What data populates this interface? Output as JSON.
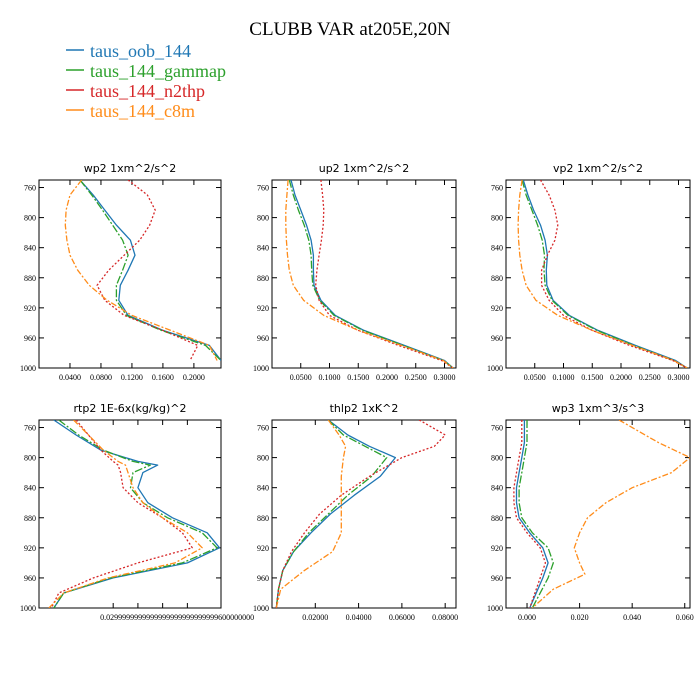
{
  "figure_title": "CLUBB VAR at205E,20N",
  "legend": [
    {
      "label": "taus_oob_144",
      "color": "#1f77b4"
    },
    {
      "label": "taus_144_gammap",
      "color": "#2ca02c"
    },
    {
      "label": "taus_144_n2thp",
      "color": "#d62728"
    },
    {
      "label": "taus_144_c8m",
      "color": "#ff8c1a"
    }
  ],
  "chart_data": [
    {
      "type": "line",
      "title": "wp2   1xm^2/s^2",
      "xlim": [
        0.0,
        0.235
      ],
      "ylim": [
        1000,
        750
      ],
      "xticks": [
        0.04,
        0.08,
        0.12,
        0.16,
        0.2
      ],
      "xtick_labels": [
        "0.0400",
        "0.0800",
        "0.1200",
        "0.1600",
        "0.2000"
      ],
      "yticks": [
        760,
        800,
        840,
        880,
        920,
        960,
        1000
      ],
      "ytick_labels": [
        "760",
        "800",
        "840",
        "880",
        "920",
        "960",
        "1000"
      ],
      "series": [
        {
          "name": "taus_oob_144",
          "x": [
            0.053,
            0.07,
            0.085,
            0.1,
            0.118,
            0.124,
            0.115,
            0.105,
            0.103,
            0.115,
            0.16,
            0.22,
            0.235
          ],
          "y": [
            750,
            770,
            790,
            810,
            830,
            850,
            870,
            890,
            910,
            930,
            950,
            970,
            990
          ]
        },
        {
          "name": "taus_144_gammap",
          "x": [
            0.053,
            0.068,
            0.082,
            0.095,
            0.108,
            0.115,
            0.108,
            0.1,
            0.1,
            0.113,
            0.158,
            0.215,
            0.235
          ],
          "y": [
            750,
            770,
            790,
            810,
            830,
            850,
            870,
            890,
            910,
            930,
            950,
            970,
            990
          ]
        },
        {
          "name": "taus_144_n2thp",
          "x": [
            0.115,
            0.14,
            0.15,
            0.143,
            0.13,
            0.11,
            0.09,
            0.075,
            0.085,
            0.11,
            0.16,
            0.205,
            0.195
          ],
          "y": [
            750,
            770,
            790,
            810,
            830,
            850,
            870,
            890,
            910,
            930,
            950,
            970,
            990
          ]
        },
        {
          "name": "taus_144_c8m",
          "x": [
            0.055,
            0.04,
            0.035,
            0.034,
            0.036,
            0.04,
            0.05,
            0.065,
            0.088,
            0.12,
            0.17,
            0.22,
            0.23
          ],
          "y": [
            750,
            770,
            790,
            810,
            830,
            850,
            870,
            890,
            910,
            930,
            950,
            970,
            990
          ]
        }
      ]
    },
    {
      "type": "line",
      "title": "up2   1xm^2/s^2",
      "xlim": [
        0.0,
        0.32
      ],
      "ylim": [
        1000,
        750
      ],
      "xticks": [
        0.05,
        0.1,
        0.15,
        0.2,
        0.25,
        0.3
      ],
      "xtick_labels": [
        "0.0500",
        "0.1000",
        "0.1500",
        "0.2000",
        "0.2500",
        "0.3000"
      ],
      "yticks": [
        760,
        800,
        840,
        880,
        920,
        960,
        1000
      ],
      "ytick_labels": [
        "760",
        "800",
        "840",
        "880",
        "920",
        "960",
        "1000"
      ],
      "series": [
        {
          "name": "taus_oob_144",
          "x": [
            0.033,
            0.04,
            0.05,
            0.06,
            0.068,
            0.072,
            0.072,
            0.073,
            0.085,
            0.11,
            0.16,
            0.23,
            0.3,
            0.315
          ],
          "y": [
            750,
            770,
            790,
            810,
            830,
            850,
            870,
            890,
            910,
            930,
            950,
            970,
            990,
            1000
          ]
        },
        {
          "name": "taus_144_gammap",
          "x": [
            0.03,
            0.037,
            0.046,
            0.056,
            0.064,
            0.068,
            0.069,
            0.071,
            0.083,
            0.108,
            0.158,
            0.228,
            0.298,
            0.315
          ],
          "y": [
            750,
            770,
            790,
            810,
            830,
            850,
            870,
            890,
            910,
            930,
            950,
            970,
            990,
            1000
          ]
        },
        {
          "name": "taus_144_n2thp",
          "x": [
            0.085,
            0.088,
            0.09,
            0.089,
            0.086,
            0.082,
            0.078,
            0.076,
            0.082,
            0.1,
            0.15,
            0.22,
            0.295,
            0.315
          ],
          "y": [
            750,
            770,
            790,
            810,
            830,
            850,
            870,
            890,
            910,
            930,
            950,
            970,
            990,
            1000
          ]
        },
        {
          "name": "taus_144_c8m",
          "x": [
            0.028,
            0.026,
            0.024,
            0.024,
            0.025,
            0.027,
            0.03,
            0.037,
            0.055,
            0.09,
            0.15,
            0.225,
            0.298,
            0.315
          ],
          "y": [
            750,
            770,
            790,
            810,
            830,
            850,
            870,
            890,
            910,
            930,
            950,
            970,
            990,
            1000
          ]
        }
      ]
    },
    {
      "type": "line",
      "title": "vp2   1xm^2/s^2",
      "xlim": [
        0.0,
        0.32
      ],
      "ylim": [
        1000,
        750
      ],
      "xticks": [
        0.05,
        0.1,
        0.15,
        0.2,
        0.25,
        0.3
      ],
      "xtick_labels": [
        "0.0500",
        "0.1000",
        "0.1500",
        "0.2000",
        "0.2500",
        "0.3000"
      ],
      "yticks": [
        760,
        800,
        840,
        880,
        920,
        960,
        1000
      ],
      "ytick_labels": [
        "760",
        "800",
        "840",
        "880",
        "920",
        "960",
        "1000"
      ],
      "series": [
        {
          "name": "taus_oob_144",
          "x": [
            0.03,
            0.038,
            0.048,
            0.06,
            0.068,
            0.072,
            0.07,
            0.071,
            0.082,
            0.11,
            0.16,
            0.225,
            0.295,
            0.315
          ],
          "y": [
            750,
            770,
            790,
            810,
            830,
            850,
            870,
            890,
            910,
            930,
            950,
            970,
            990,
            1000
          ]
        },
        {
          "name": "taus_144_gammap",
          "x": [
            0.028,
            0.035,
            0.045,
            0.055,
            0.063,
            0.067,
            0.066,
            0.068,
            0.08,
            0.108,
            0.158,
            0.222,
            0.292,
            0.315
          ],
          "y": [
            750,
            770,
            790,
            810,
            830,
            850,
            870,
            890,
            910,
            930,
            950,
            970,
            990,
            1000
          ]
        },
        {
          "name": "taus_144_n2thp",
          "x": [
            0.06,
            0.075,
            0.085,
            0.09,
            0.085,
            0.072,
            0.062,
            0.062,
            0.075,
            0.1,
            0.15,
            0.215,
            0.29,
            0.315
          ],
          "y": [
            750,
            770,
            790,
            810,
            830,
            850,
            870,
            890,
            910,
            930,
            950,
            970,
            990,
            1000
          ]
        },
        {
          "name": "taus_144_c8m",
          "x": [
            0.028,
            0.024,
            0.022,
            0.021,
            0.022,
            0.024,
            0.028,
            0.035,
            0.052,
            0.09,
            0.15,
            0.22,
            0.292,
            0.315
          ],
          "y": [
            750,
            770,
            790,
            810,
            830,
            850,
            870,
            890,
            910,
            930,
            950,
            970,
            990,
            1000
          ]
        }
      ]
    },
    {
      "type": "line",
      "title": "rtp2   1E-6x(kg/kg)^2",
      "xlim": [
        0.0,
        0.0736
      ],
      "ylim": [
        1000,
        750
      ],
      "xticks": [
        0.03,
        0.04,
        0.05,
        0.06
      ],
      "xtick_labels": [
        "0.0299999",
        "0.0399999",
        "0.0499999",
        "0.0600000"
      ],
      "xtick_label_text": "0.0299999999999999999999999999600000000",
      "yticks": [
        760,
        800,
        840,
        880,
        920,
        960,
        1000
      ],
      "ytick_labels": [
        "760",
        "800",
        "840",
        "880",
        "920",
        "960",
        "1000"
      ],
      "series": [
        {
          "name": "taus_oob_144",
          "x": [
            0.006,
            0.015,
            0.025,
            0.04,
            0.048,
            0.042,
            0.04,
            0.044,
            0.054,
            0.068,
            0.073,
            0.06,
            0.03,
            0.01,
            0.006
          ],
          "y": [
            750,
            770,
            790,
            805,
            810,
            820,
            840,
            860,
            880,
            900,
            920,
            940,
            960,
            980,
            1000
          ]
        },
        {
          "name": "taus_144_gammap",
          "x": [
            0.008,
            0.016,
            0.026,
            0.038,
            0.045,
            0.038,
            0.037,
            0.042,
            0.052,
            0.066,
            0.072,
            0.058,
            0.029,
            0.01,
            0.006
          ],
          "y": [
            750,
            770,
            790,
            805,
            810,
            820,
            840,
            860,
            880,
            900,
            920,
            940,
            960,
            980,
            1000
          ]
        },
        {
          "name": "taus_144_n2thp",
          "x": [
            0.015,
            0.02,
            0.025,
            0.03,
            0.032,
            0.033,
            0.034,
            0.04,
            0.05,
            0.058,
            0.062,
            0.04,
            0.022,
            0.008,
            0.005
          ],
          "y": [
            750,
            770,
            790,
            805,
            810,
            820,
            840,
            860,
            880,
            900,
            920,
            940,
            960,
            980,
            1000
          ]
        },
        {
          "name": "taus_144_c8m",
          "x": [
            0.014,
            0.02,
            0.026,
            0.032,
            0.035,
            0.036,
            0.038,
            0.042,
            0.05,
            0.06,
            0.066,
            0.055,
            0.028,
            0.01,
            0.004
          ],
          "y": [
            750,
            770,
            790,
            805,
            810,
            820,
            840,
            860,
            880,
            900,
            920,
            940,
            960,
            980,
            1000
          ]
        }
      ]
    },
    {
      "type": "line",
      "title": "thlp2   1xK^2",
      "xlim": [
        0.0,
        0.085
      ],
      "ylim": [
        1000,
        750
      ],
      "xticks": [
        0.02,
        0.04,
        0.06,
        0.08
      ],
      "xtick_labels": [
        "0.02000",
        "0.04000",
        "0.06000",
        "0.08000"
      ],
      "yticks": [
        760,
        800,
        840,
        880,
        920,
        960,
        1000
      ],
      "ytick_labels": [
        "760",
        "800",
        "840",
        "880",
        "920",
        "960",
        "1000"
      ],
      "series": [
        {
          "name": "taus_oob_144",
          "x": [
            0.026,
            0.035,
            0.045,
            0.057,
            0.05,
            0.038,
            0.027,
            0.018,
            0.01,
            0.005,
            0.003,
            0.002
          ],
          "y": [
            750,
            770,
            785,
            800,
            825,
            850,
            875,
            900,
            925,
            950,
            975,
            1000
          ]
        },
        {
          "name": "taus_144_gammap",
          "x": [
            0.026,
            0.033,
            0.043,
            0.053,
            0.046,
            0.035,
            0.026,
            0.017,
            0.01,
            0.005,
            0.003,
            0.002
          ],
          "y": [
            750,
            770,
            785,
            800,
            825,
            850,
            875,
            900,
            925,
            950,
            975,
            1000
          ]
        },
        {
          "name": "taus_144_n2thp",
          "x": [
            0.068,
            0.08,
            0.075,
            0.06,
            0.045,
            0.032,
            0.022,
            0.015,
            0.009,
            0.005,
            0.003,
            0.002
          ],
          "y": [
            750,
            770,
            785,
            800,
            825,
            850,
            875,
            900,
            925,
            950,
            975,
            1000
          ]
        },
        {
          "name": "taus_144_c8m",
          "x": [
            0.026,
            0.031,
            0.034,
            0.033,
            0.032,
            0.032,
            0.032,
            0.032,
            0.028,
            0.015,
            0.004,
            0.002
          ],
          "y": [
            750,
            770,
            785,
            800,
            825,
            850,
            875,
            900,
            925,
            950,
            975,
            1000
          ]
        }
      ]
    },
    {
      "type": "line",
      "title": "wp3   1xm^3/s^3",
      "xlim": [
        -0.008,
        0.062
      ],
      "ylim": [
        1000,
        750
      ],
      "xticks": [
        0.0,
        0.02,
        0.04,
        0.06
      ],
      "xtick_labels": [
        "0.000",
        "0.020",
        "0.040",
        "0.060"
      ],
      "yticks": [
        760,
        800,
        840,
        880,
        920,
        960,
        1000
      ],
      "ytick_labels": [
        "760",
        "800",
        "840",
        "880",
        "920",
        "960",
        "1000"
      ],
      "series": [
        {
          "name": "taus_oob_144",
          "x": [
            -0.001,
            -0.001,
            -0.002,
            -0.003,
            -0.004,
            -0.004,
            -0.003,
            0.001,
            0.006,
            0.008,
            0.006,
            0.001
          ],
          "y": [
            750,
            780,
            800,
            820,
            840,
            860,
            880,
            900,
            920,
            940,
            960,
            1000
          ]
        },
        {
          "name": "taus_144_gammap",
          "x": [
            0.0,
            0.0,
            -0.001,
            -0.002,
            -0.003,
            -0.003,
            -0.002,
            0.002,
            0.008,
            0.01,
            0.008,
            0.002
          ],
          "y": [
            750,
            780,
            800,
            820,
            840,
            860,
            880,
            900,
            920,
            940,
            960,
            1000
          ]
        },
        {
          "name": "taus_144_n2thp",
          "x": [
            -0.002,
            -0.002,
            -0.003,
            -0.004,
            -0.005,
            -0.005,
            -0.004,
            0.0,
            0.005,
            0.007,
            0.005,
            0.001
          ],
          "y": [
            750,
            780,
            800,
            820,
            840,
            860,
            880,
            900,
            920,
            940,
            960,
            1000
          ]
        },
        {
          "name": "taus_144_c8m",
          "x": [
            0.035,
            0.05,
            0.062,
            0.055,
            0.04,
            0.03,
            0.023,
            0.02,
            0.018,
            0.02,
            0.022,
            0.01,
            0.002
          ],
          "y": [
            750,
            780,
            800,
            820,
            840,
            860,
            880,
            900,
            920,
            940,
            955,
            975,
            1000
          ]
        }
      ]
    }
  ]
}
